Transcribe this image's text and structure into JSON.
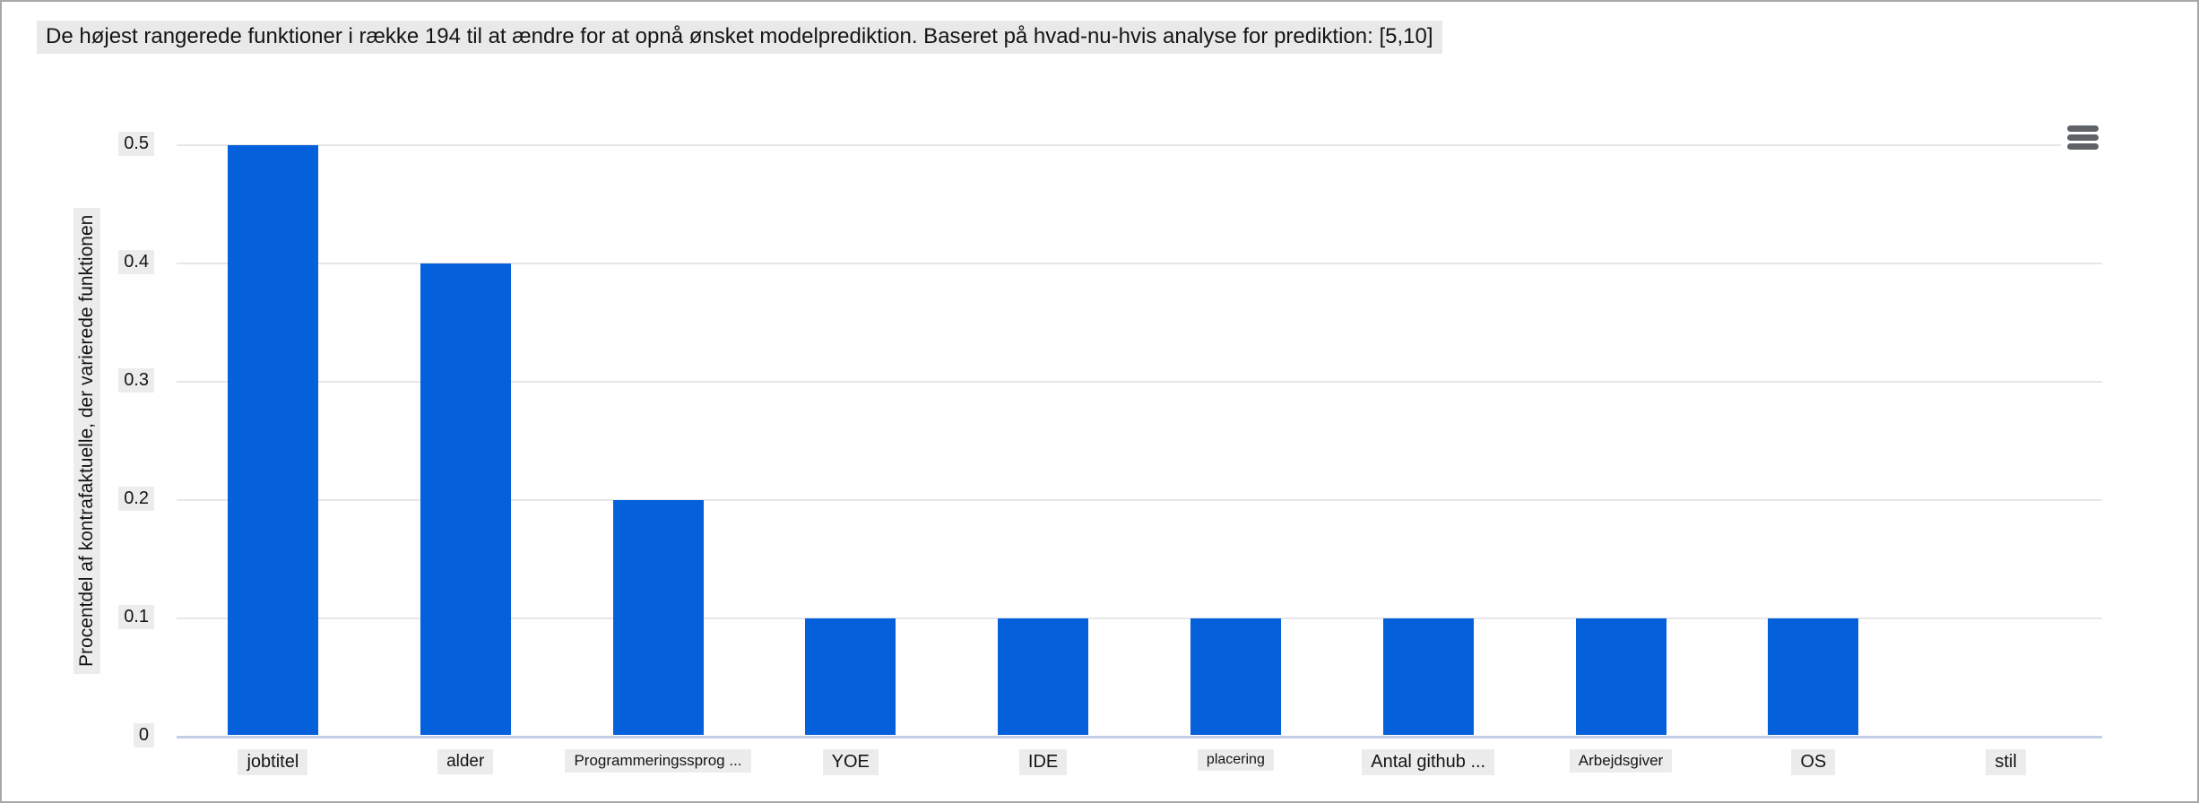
{
  "page": {
    "background": "#ffffff",
    "border_color": "#a8a8a8",
    "text_highlight_color": "#ececec"
  },
  "toolbar": {
    "menu_icon": "hamburger-icon"
  },
  "chart_data": {
    "type": "bar",
    "title": "De højest rangerede funktioner i række 194 til at ændre for at opnå ønsket modelprediktion. Baseret på hvad-nu-hvis analyse for prediktion: [5,10]",
    "categories": [
      "jobtitel",
      "alder",
      "Programmeringssprog ...",
      "YOE",
      "IDE",
      "placering",
      "Antal github ...",
      "Arbejdsgiver",
      "OS",
      "stil"
    ],
    "values": [
      0.5,
      0.4,
      0.2,
      0.1,
      0.1,
      0.1,
      0.1,
      0.1,
      0.1,
      0
    ],
    "xlabel": "",
    "ylabel": "Procentdel af kontrafaktuelle, der varierede funktionen",
    "ylim": [
      0,
      0.5
    ],
    "yticks": [
      0,
      0.1,
      0.2,
      0.3,
      0.4,
      0.5
    ],
    "ytick_labels": [
      "0",
      "0.1",
      "0.2",
      "0.3",
      "0.4",
      "0.5"
    ],
    "grid": true,
    "legend": false,
    "bar_color": "#0561db",
    "gridline_color": "#e7e7e7",
    "baseline_color": "#c3cde8"
  }
}
